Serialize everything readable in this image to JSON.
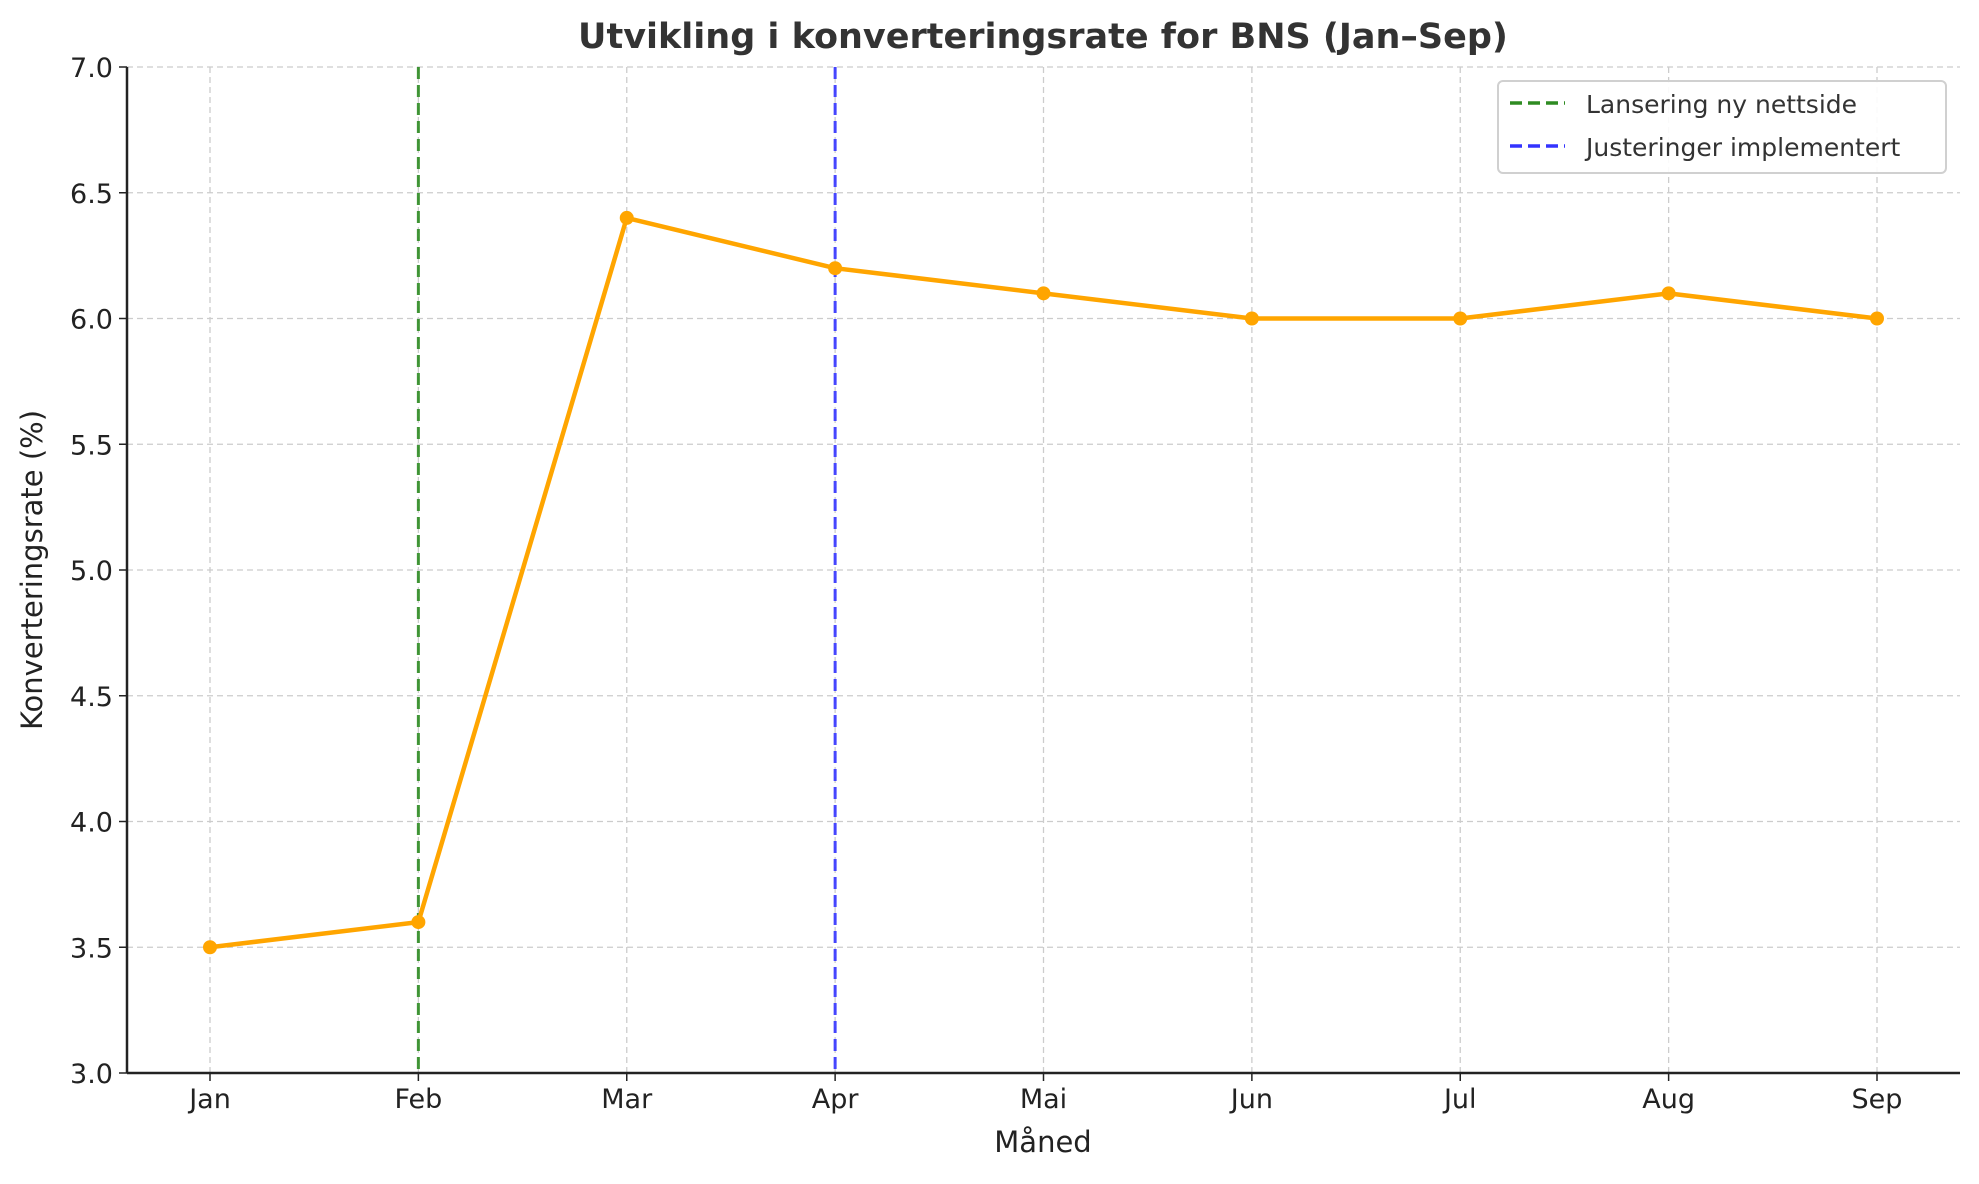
{
  "chart_data": {
    "type": "line",
    "title": "Utvikling i konverteringsrate for BNS (Jan–Sep)",
    "xlabel": "Måned",
    "ylabel": "Konverteringsrate (%)",
    "categories": [
      "Jan",
      "Feb",
      "Mar",
      "Apr",
      "Mai",
      "Jun",
      "Jul",
      "Aug",
      "Sep"
    ],
    "values": [
      3.5,
      3.6,
      6.4,
      6.2,
      6.1,
      6.0,
      6.0,
      6.1,
      6.0
    ],
    "ylim": [
      3.0,
      7.0
    ],
    "yticks": [
      "3.0",
      "3.5",
      "4.0",
      "4.5",
      "5.0",
      "5.5",
      "6.0",
      "6.5",
      "7.0"
    ],
    "grid": true,
    "legend_position": "top-right",
    "line_color": "#FFA500",
    "annotations": [
      {
        "label": "Lansering ny nettside",
        "x": "Feb",
        "color": "#2E8B22",
        "style": "dashed"
      },
      {
        "label": "Justeringer implementert",
        "x": "Apr",
        "color": "#3333FF",
        "style": "dashed"
      }
    ]
  }
}
